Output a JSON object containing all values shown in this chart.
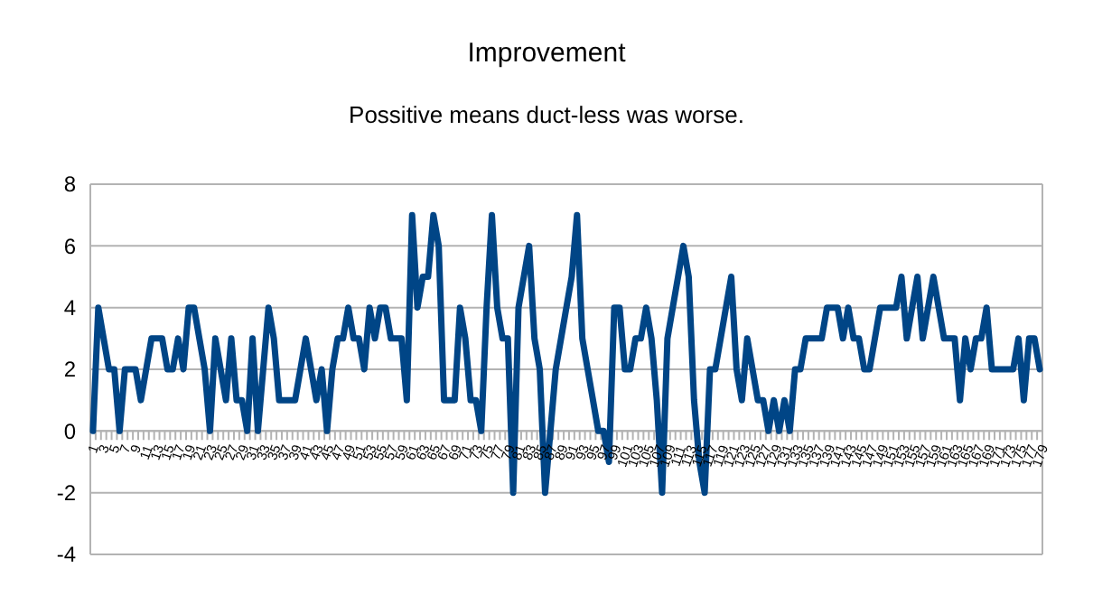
{
  "chart_data": {
    "type": "line",
    "title": "Improvement",
    "subtitle": "Possitive means duct-less was worse.",
    "categories": [
      "1",
      null,
      "3",
      null,
      "5",
      null,
      "7",
      null,
      "9",
      null,
      "11",
      null,
      "13",
      null,
      "15",
      null,
      "17",
      null,
      "19",
      null,
      "21",
      null,
      "23",
      null,
      "25",
      null,
      "27",
      null,
      "29",
      null,
      "31",
      null,
      "33",
      null,
      "35",
      null,
      "37",
      null,
      "39",
      null,
      "41",
      null,
      "43",
      null,
      "45",
      null,
      "47",
      null,
      "49",
      null,
      "51",
      null,
      "53",
      null,
      "55",
      null,
      "57",
      null,
      "59",
      null,
      "61",
      null,
      "63",
      null,
      "65",
      null,
      "67",
      null,
      "69",
      null,
      "71",
      null,
      "73",
      null,
      "75",
      null,
      "77",
      null,
      "79",
      null,
      "81",
      null,
      "83",
      null,
      "85",
      null,
      "87",
      null,
      "89",
      null,
      "91",
      null,
      "93",
      null,
      "95",
      null,
      "97",
      null,
      "99",
      null,
      "101",
      null,
      "103",
      null,
      "105",
      null,
      "107",
      null,
      "109",
      null,
      "111",
      null,
      "113",
      null,
      "115",
      null,
      "117",
      null,
      "119",
      null,
      "121",
      null,
      "123",
      null,
      "125",
      null,
      "127",
      null,
      "129",
      null,
      "131",
      null,
      "133",
      null,
      "135",
      null,
      "137",
      null,
      "139",
      null,
      "141",
      null,
      "143",
      null,
      "145",
      null,
      "147",
      null,
      "149",
      null,
      "151",
      null,
      "153",
      null,
      "155",
      null,
      "157",
      null,
      "159",
      null,
      "161",
      null,
      "163",
      null,
      "165",
      null,
      "167",
      null,
      "169",
      null,
      "171",
      null,
      "173",
      null,
      "175",
      null,
      "177",
      null,
      "179"
    ],
    "series": [
      {
        "color": "#004586",
        "values": [
          0,
          4,
          3,
          2,
          2,
          0,
          2,
          2,
          2,
          1,
          2,
          3,
          3,
          3,
          2,
          2,
          3,
          2,
          4,
          4,
          3,
          2,
          0,
          3,
          2,
          1,
          3,
          1,
          1,
          0,
          3,
          0,
          2,
          4,
          3,
          1,
          1,
          1,
          1,
          2,
          3,
          2,
          1,
          2,
          0,
          2,
          3,
          3,
          4,
          3,
          3,
          2,
          4,
          3,
          4,
          4,
          3,
          3,
          3,
          1,
          7,
          4,
          5,
          5,
          7,
          6,
          1,
          1,
          1,
          4,
          3,
          1,
          1,
          0,
          4,
          7,
          4,
          3,
          3,
          -2,
          4,
          5,
          6,
          3,
          2,
          -2,
          0,
          2,
          3,
          4,
          5,
          7,
          3,
          2,
          1,
          0,
          0,
          -1,
          4,
          4,
          2,
          2,
          3,
          3,
          4,
          3,
          1,
          -2,
          3,
          4,
          5,
          6,
          5,
          1,
          -1,
          -2,
          2,
          2,
          3,
          4,
          5,
          2,
          1,
          3,
          2,
          1,
          1,
          0,
          1,
          0,
          1,
          0,
          2,
          2,
          3,
          3,
          3,
          3,
          4,
          4,
          4,
          3,
          4,
          3,
          3,
          2,
          2,
          3,
          4,
          4,
          4,
          4,
          5,
          3,
          4,
          5,
          3,
          4,
          5,
          4,
          3,
          3,
          3,
          1,
          3,
          2,
          3,
          3,
          4,
          2,
          2,
          2,
          2,
          2,
          3,
          1,
          3,
          3,
          2
        ]
      }
    ],
    "ylim": [
      -4,
      8
    ],
    "yticks": [
      -4,
      -2,
      0,
      2,
      4,
      6,
      8
    ],
    "grid": "y",
    "marker": "none",
    "line_style": "solid"
  }
}
